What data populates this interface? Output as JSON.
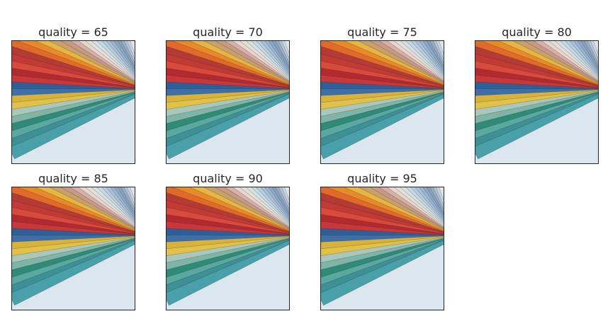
{
  "figure": {
    "panels": [
      {
        "title": "quality = 65",
        "quality": 65
      },
      {
        "title": "quality = 70",
        "quality": 70
      },
      {
        "title": "quality = 75",
        "quality": 75
      },
      {
        "title": "quality = 80",
        "quality": 80
      },
      {
        "title": "quality = 85",
        "quality": 85
      },
      {
        "title": "quality = 90",
        "quality": 90
      },
      {
        "title": "quality = 95",
        "quality": 95
      }
    ],
    "background_color": "#dbe6ee",
    "fan_colors": [
      "#4aa0a8",
      "#3e8f96",
      "#5aa9a0",
      "#2f8a78",
      "#7fb5a6",
      "#a9c7bd",
      "#e0c24a",
      "#d8b23a",
      "#3f6fa6",
      "#2f5f98",
      "#c8373a",
      "#b02a30",
      "#d84a3c",
      "#c23a34",
      "#b43a36",
      "#e06a2a",
      "#e88a2a",
      "#e7b544",
      "#caa06a",
      "#c59a86",
      "#d8b0a6",
      "#e7d7cf",
      "#e5dfd6",
      "#d6e1e6",
      "#c7d9e3",
      "#b9cde0",
      "#a9c2d8",
      "#9cb6d1",
      "#8fa8c7",
      "#86a3bd",
      "#9aaec6",
      "#b5c4d3",
      "#cad5df"
    ]
  }
}
